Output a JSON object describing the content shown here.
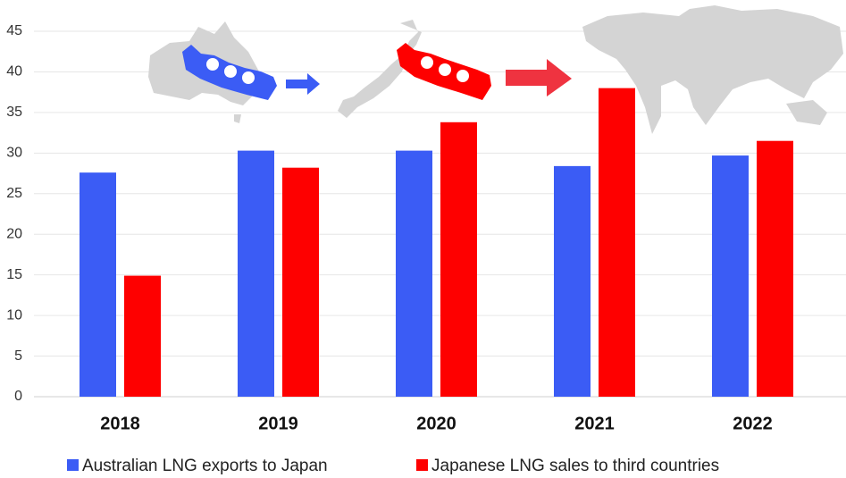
{
  "chart_data": {
    "type": "bar",
    "categories": [
      "2018",
      "2019",
      "2020",
      "2021",
      "2022"
    ],
    "series": [
      {
        "name": "Australian LNG exports to Japan",
        "color": "#3b5cf5",
        "values": [
          27.6,
          30.3,
          30.3,
          28.4,
          29.7
        ]
      },
      {
        "name": "Japanese LNG sales to third countries",
        "color": "#fe0000",
        "values": [
          14.9,
          28.2,
          33.8,
          38.0,
          31.5
        ]
      }
    ],
    "ylim": [
      0,
      45
    ],
    "yticks": [
      0,
      5,
      10,
      15,
      20,
      25,
      30,
      35,
      40,
      45
    ],
    "grid": true
  }
}
